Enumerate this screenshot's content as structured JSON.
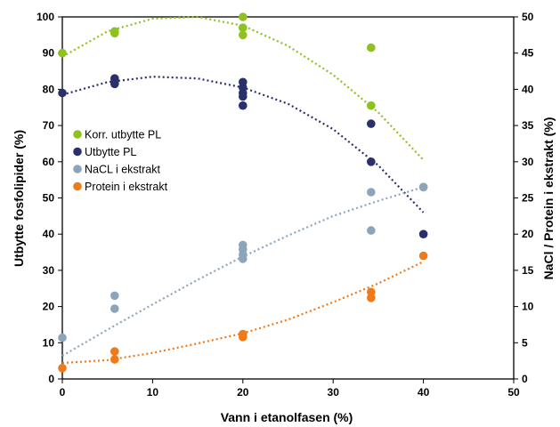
{
  "chart_data": {
    "type": "scatter",
    "xlabel": "Vann i etanolfasen (%)",
    "ylabel": "Utbytte fosfolipider (%)",
    "y2label": "NaCl / Protein i ekstrakt (%)",
    "xlim": [
      0,
      50
    ],
    "ylim": [
      0,
      100
    ],
    "y2lim": [
      0,
      50
    ],
    "x_ticks": [
      "0",
      "10",
      "20",
      "30",
      "40",
      "50"
    ],
    "y_ticks": [
      "0",
      "10",
      "20",
      "30",
      "40",
      "50",
      "60",
      "70",
      "80",
      "90",
      "100"
    ],
    "y2_ticks": [
      "0",
      "5",
      "10",
      "15",
      "20",
      "25",
      "30",
      "35",
      "40",
      "45",
      "50"
    ],
    "grid": false,
    "legend_position": "left",
    "series": [
      {
        "name": "Korr. utbytte PL",
        "axis": "left",
        "color": "#8dc21f",
        "points": [
          [
            0,
            90
          ],
          [
            5.8,
            95.5
          ],
          [
            5.8,
            96
          ],
          [
            20,
            100
          ],
          [
            20,
            97
          ],
          [
            20,
            95
          ],
          [
            34.2,
            91.5
          ],
          [
            34.2,
            75.5
          ],
          [
            40,
            53
          ]
        ],
        "trend": [
          [
            0,
            89
          ],
          [
            5,
            96
          ],
          [
            10,
            99.5
          ],
          [
            15,
            100
          ],
          [
            20,
            97.6
          ],
          [
            25,
            92
          ],
          [
            30,
            84
          ],
          [
            35,
            73.6
          ],
          [
            40,
            60.5
          ]
        ]
      },
      {
        "name": "Utbytte PL",
        "axis": "left",
        "color": "#2b2f6b",
        "points": [
          [
            0,
            79
          ],
          [
            5.8,
            83
          ],
          [
            5.8,
            82
          ],
          [
            5.8,
            81.5
          ],
          [
            20,
            82
          ],
          [
            20,
            80.5
          ],
          [
            20,
            79
          ],
          [
            20,
            78
          ],
          [
            20,
            75.5
          ],
          [
            34.2,
            70.5
          ],
          [
            34.2,
            60
          ],
          [
            40,
            40
          ]
        ],
        "trend": [
          [
            0,
            78.5
          ],
          [
            5,
            82
          ],
          [
            10,
            83.5
          ],
          [
            15,
            83
          ],
          [
            20,
            80.5
          ],
          [
            25,
            76
          ],
          [
            30,
            69
          ],
          [
            35,
            59
          ],
          [
            40,
            46
          ]
        ]
      },
      {
        "name": "NaCL i ekstrakt",
        "axis": "right",
        "color": "#8ca5bb",
        "points": [
          [
            0,
            5.7
          ],
          [
            5.8,
            11.5
          ],
          [
            5.8,
            9.7
          ],
          [
            20,
            18.5
          ],
          [
            20,
            17.9
          ],
          [
            20,
            17.2
          ],
          [
            20,
            16.6
          ],
          [
            34.2,
            25.8
          ],
          [
            34.2,
            20.5
          ],
          [
            40,
            26.5
          ]
        ],
        "trend": [
          [
            0,
            3.2
          ],
          [
            5,
            6.8
          ],
          [
            10,
            10.3
          ],
          [
            15,
            13.7
          ],
          [
            20,
            16.9
          ],
          [
            25,
            19.8
          ],
          [
            30,
            22.5
          ],
          [
            35,
            24.6
          ],
          [
            40,
            26.5
          ]
        ]
      },
      {
        "name": "Protein i ekstrakt",
        "axis": "right",
        "color": "#ee7a1a",
        "points": [
          [
            0,
            1.5
          ],
          [
            5.8,
            3.8
          ],
          [
            5.8,
            2.7
          ],
          [
            20,
            6.2
          ],
          [
            20,
            5.8
          ],
          [
            34.2,
            12
          ],
          [
            34.2,
            11.2
          ],
          [
            40,
            17
          ]
        ],
        "trend": [
          [
            0,
            2.2
          ],
          [
            5,
            2.6
          ],
          [
            10,
            3.6
          ],
          [
            15,
            4.9
          ],
          [
            20,
            6.3
          ],
          [
            25,
            8.2
          ],
          [
            30,
            10.6
          ],
          [
            35,
            13.2
          ],
          [
            40,
            16.2
          ]
        ]
      }
    ]
  }
}
